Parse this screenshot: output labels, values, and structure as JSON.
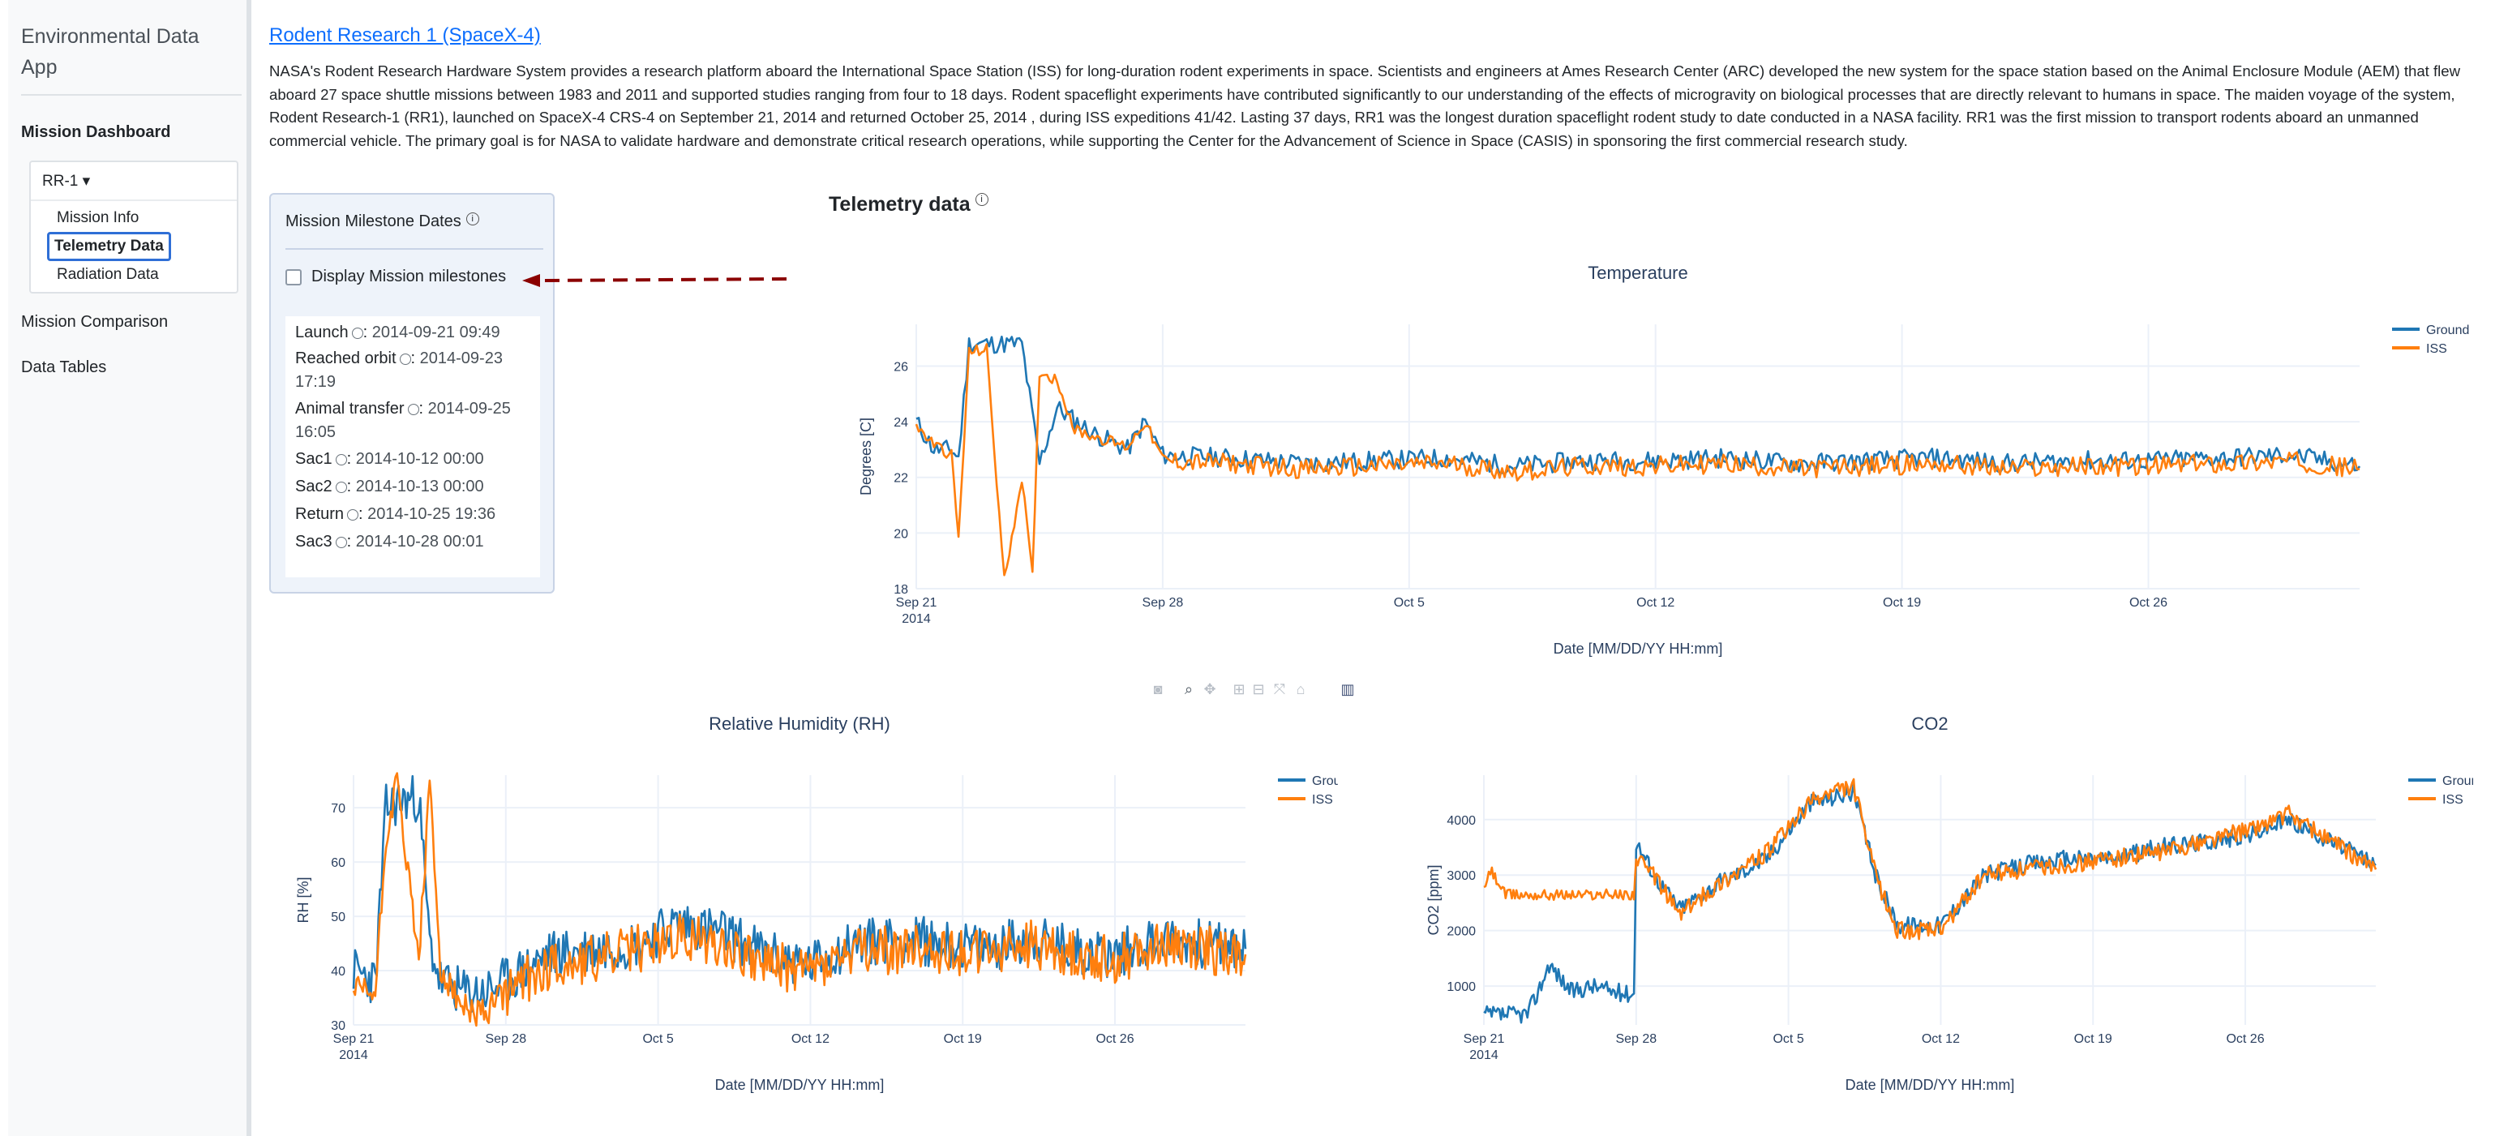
{
  "sidebar": {
    "app_title": "Environmental Data App",
    "mission_dashboard": "Mission Dashboard",
    "dropdown_label": "RR-1 ▾",
    "dropdown_items": [
      "Mission Info",
      "Telemetry Data",
      "Radiation Data"
    ],
    "active_item": "Telemetry Data",
    "mission_comparison": "Mission Comparison",
    "data_tables": "Data Tables"
  },
  "main": {
    "title": "Rodent Research 1 (SpaceX-4)",
    "description": "NASA's Rodent Research Hardware System provides a research platform aboard the International Space Station (ISS) for long-duration rodent experiments in space. Scientists and engineers at Ames Research Center (ARC) developed the new system for the space station based on the Animal Enclosure Module (AEM) that flew aboard 27 space shuttle missions between 1983 and 2011 and supported studies ranging from four to 18 days. Rodent spaceflight experiments have contributed significantly to our understanding of the effects of microgravity on biological processes that are directly relevant to humans in space. The maiden voyage of the system, Rodent Research-1 (RR1), launched on SpaceX-4 CRS-4 on September 21, 2014 and returned October 25, 2014 , during ISS expeditions 41/42. Lasting 37 days, RR1 was the longest duration spaceflight rodent study to date conducted in a NASA facility. RR1 was the first mission to transport rodents aboard an unmanned commercial vehicle. The primary goal is for NASA to validate hardware and demonstrate critical research operations, while supporting the Center for the Advancement of Science in Space (CASIS) in sponsoring the first commercial research study."
  },
  "milestones": {
    "title": "Mission Milestone Dates",
    "checkbox_label": "Display Mission milestones",
    "checked": false,
    "items": [
      {
        "label": "Launch",
        "date": "2014-09-21 09:49"
      },
      {
        "label": "Reached orbit",
        "date": "2014-09-23 17:19"
      },
      {
        "label": "Animal transfer",
        "date": "2014-09-25 16:05"
      },
      {
        "label": "Sac1",
        "date": "2014-10-12 00:00"
      },
      {
        "label": "Sac2",
        "date": "2014-10-13 00:00"
      },
      {
        "label": "Return",
        "date": "2014-10-25 19:36"
      },
      {
        "label": "Sac3",
        "date": "2014-10-28 00:01"
      }
    ]
  },
  "telemetry": {
    "title": "Telemetry data",
    "modebar_icons": [
      "camera-icon",
      "zoom-icon",
      "pan-icon",
      "zoom-in-icon",
      "zoom-out-icon",
      "autoscale-icon",
      "home-icon",
      "plotly-logo-icon"
    ]
  },
  "colors": {
    "ground": "#1f77b4",
    "iss": "#ff7f0e",
    "link": "#0d6efd",
    "arrow": "#8b0000"
  },
  "chart_data": [
    {
      "type": "line",
      "title": "Temperature",
      "xlabel": "Date [MM/DD/YY HH:mm]",
      "ylabel": "Degrees [C]",
      "x_ticks": [
        "Sep 21\n2014",
        "Sep 28",
        "Oct 5",
        "Oct 12",
        "Oct 19",
        "Oct 26"
      ],
      "x_range": [
        "2014-09-21",
        "2014-11-01"
      ],
      "y_ticks": [
        18,
        20,
        22,
        24,
        26
      ],
      "ylim": [
        18,
        27.5
      ],
      "grid": true,
      "legend": "top-right",
      "series": [
        {
          "name": "Ground",
          "x": [
            "2014-09-21",
            "2014-09-21.5",
            "2014-09-22",
            "2014-09-22.2",
            "2014-09-22.5",
            "2014-09-23",
            "2014-09-24",
            "2014-09-24.5",
            "2014-09-25",
            "2014-09-26",
            "2014-09-27",
            "2014-09-27.5",
            "2014-09-28",
            "2014-09-30",
            "2014-10-02",
            "2014-10-04",
            "2014-10-06",
            "2014-10-08",
            "2014-10-10",
            "2014-10-12",
            "2014-10-14",
            "2014-10-16",
            "2014-10-18",
            "2014-10-20",
            "2014-10-22",
            "2014-10-24",
            "2014-10-26",
            "2014-10-28",
            "2014-10-30",
            "2014-11-01"
          ],
          "y": [
            24,
            23,
            23,
            22.7,
            26.8,
            26.8,
            26.8,
            22.5,
            24.5,
            23.6,
            23,
            24,
            22.8,
            22.7,
            22.5,
            22.6,
            22.7,
            22.4,
            22.6,
            22.6,
            22.7,
            22.5,
            22.6,
            22.7,
            22.5,
            22.6,
            22.6,
            22.7,
            22.8,
            22.4
          ]
        },
        {
          "name": "ISS",
          "x": [
            "2014-09-21",
            "2014-09-21.5",
            "2014-09-22",
            "2014-09-22.2",
            "2014-09-22.5",
            "2014-09-23",
            "2014-09-23.5",
            "2014-09-24",
            "2014-09-24.3",
            "2014-09-24.5",
            "2014-09-25",
            "2014-09-25.5",
            "2014-09-26",
            "2014-09-27",
            "2014-09-27.5",
            "2014-09-28",
            "2014-09-30",
            "2014-10-02",
            "2014-10-04",
            "2014-10-06",
            "2014-10-08",
            "2014-10-10",
            "2014-10-12",
            "2014-10-14",
            "2014-10-16",
            "2014-10-18",
            "2014-10-20",
            "2014-10-22",
            "2014-10-24",
            "2014-10-26",
            "2014-10-28",
            "2014-10-30",
            "2014-11-01"
          ],
          "y": [
            23.8,
            23.2,
            22.8,
            19.8,
            26.5,
            26.6,
            18.3,
            22,
            18.4,
            25.8,
            25.5,
            23.7,
            23.5,
            23.1,
            24,
            22.6,
            22.5,
            22.3,
            22.4,
            22.5,
            22.2,
            22.4,
            22.4,
            22.5,
            22.3,
            22.4,
            22.5,
            22.3,
            22.4,
            22.4,
            22.5,
            22.6,
            22.3
          ]
        }
      ]
    },
    {
      "type": "line",
      "title": "Relative Humidity (RH)",
      "xlabel": "Date [MM/DD/YY HH:mm]",
      "ylabel": "RH [%]",
      "x_ticks": [
        "Sep 21\n2014",
        "Sep 28",
        "Oct 5",
        "Oct 12",
        "Oct 19",
        "Oct 26"
      ],
      "x_range": [
        "2014-09-21",
        "2014-11-01"
      ],
      "y_ticks": [
        30,
        40,
        50,
        60,
        70
      ],
      "ylim": [
        30,
        76
      ],
      "grid": true,
      "legend": "top-right",
      "series": [
        {
          "name": "Ground",
          "x": [
            "2014-09-21",
            "2014-09-22",
            "2014-09-22.5",
            "2014-09-23",
            "2014-09-24",
            "2014-09-24.5",
            "2014-09-25",
            "2014-09-26",
            "2014-09-27",
            "2014-09-28",
            "2014-09-30",
            "2014-10-02",
            "2014-10-04",
            "2014-10-06",
            "2014-10-08",
            "2014-10-10",
            "2014-10-12",
            "2014-10-14",
            "2014-10-16",
            "2014-10-18",
            "2014-10-20",
            "2014-10-22",
            "2014-10-24",
            "2014-10-26",
            "2014-10-28",
            "2014-10-30",
            "2014-11-01"
          ],
          "y": [
            40,
            38,
            70,
            71,
            72,
            45,
            38,
            36,
            36,
            38,
            43,
            44,
            45,
            49,
            47,
            43,
            41,
            45,
            46,
            45,
            44,
            46,
            44,
            43,
            46,
            45,
            44
          ]
        },
        {
          "name": "ISS",
          "x": [
            "2014-09-21",
            "2014-09-22",
            "2014-09-22.5",
            "2014-09-23",
            "2014-09-24",
            "2014-09-24.5",
            "2014-09-25",
            "2014-09-26",
            "2014-09-27",
            "2014-09-28",
            "2014-09-30",
            "2014-10-02",
            "2014-10-04",
            "2014-10-06",
            "2014-10-08",
            "2014-10-10",
            "2014-10-12",
            "2014-10-14",
            "2014-10-16",
            "2014-10-18",
            "2014-10-20",
            "2014-10-22",
            "2014-10-24",
            "2014-10-26",
            "2014-10-28",
            "2014-10-30",
            "2014-11-01"
          ],
          "y": [
            37,
            36,
            65,
            75,
            42,
            74,
            40,
            33,
            32,
            36,
            41,
            42,
            44,
            46,
            45,
            41,
            40,
            43,
            44,
            44,
            43,
            45,
            43,
            42,
            45,
            44,
            43
          ]
        }
      ]
    },
    {
      "type": "line",
      "title": "CO2",
      "xlabel": "Date [MM/DD/YY HH:mm]",
      "ylabel": "CO2 [ppm]",
      "x_ticks": [
        "Sep 21\n2014",
        "Sep 28",
        "Oct 5",
        "Oct 12",
        "Oct 19",
        "Oct 26"
      ],
      "x_range": [
        "2014-09-21",
        "2014-11-01"
      ],
      "y_ticks": [
        1000,
        2000,
        3000,
        4000
      ],
      "ylim": [
        300,
        4800
      ],
      "grid": true,
      "legend": "top-right",
      "series": [
        {
          "name": "Ground",
          "x": [
            "2014-09-21",
            "2014-09-22",
            "2014-09-23",
            "2014-09-23.5",
            "2014-09-24",
            "2014-09-25",
            "2014-09-26",
            "2014-09-27",
            "2014-09-27.9",
            "2014-09-28",
            "2014-09-29",
            "2014-09-30",
            "2014-10-02",
            "2014-10-04",
            "2014-10-06",
            "2014-10-07",
            "2014-10-08",
            "2014-10-09",
            "2014-10-10",
            "2014-10-12",
            "2014-10-14",
            "2014-10-16",
            "2014-10-18",
            "2014-10-20",
            "2014-10-22",
            "2014-10-24",
            "2014-10-26",
            "2014-10-28",
            "2014-10-30",
            "2014-11-01"
          ],
          "y": [
            480,
            480,
            500,
            900,
            1400,
            900,
            1000,
            900,
            850,
            3600,
            2900,
            2400,
            2900,
            3300,
            4300,
            4400,
            4500,
            3000,
            2100,
            2100,
            3000,
            3200,
            3300,
            3300,
            3500,
            3600,
            3700,
            4000,
            3600,
            3200
          ]
        },
        {
          "name": "ISS",
          "x": [
            "2014-09-21",
            "2014-09-21.3",
            "2014-09-22",
            "2014-09-25",
            "2014-09-27.9",
            "2014-09-28",
            "2014-09-29",
            "2014-09-30",
            "2014-10-02",
            "2014-10-04",
            "2014-10-06",
            "2014-10-07",
            "2014-10-08",
            "2014-10-09",
            "2014-10-10",
            "2014-10-12",
            "2014-10-14",
            "2014-10-16",
            "2014-10-18",
            "2014-10-20",
            "2014-10-22",
            "2014-10-24",
            "2014-10-26",
            "2014-10-28",
            "2014-10-30",
            "2014-11-01"
          ],
          "y": [
            2700,
            3100,
            2650,
            2650,
            2650,
            3300,
            2900,
            2300,
            2900,
            3400,
            4300,
            4500,
            4600,
            3000,
            2000,
            2000,
            3000,
            3100,
            3200,
            3300,
            3400,
            3600,
            3800,
            4100,
            3600,
            3100
          ]
        }
      ]
    }
  ]
}
